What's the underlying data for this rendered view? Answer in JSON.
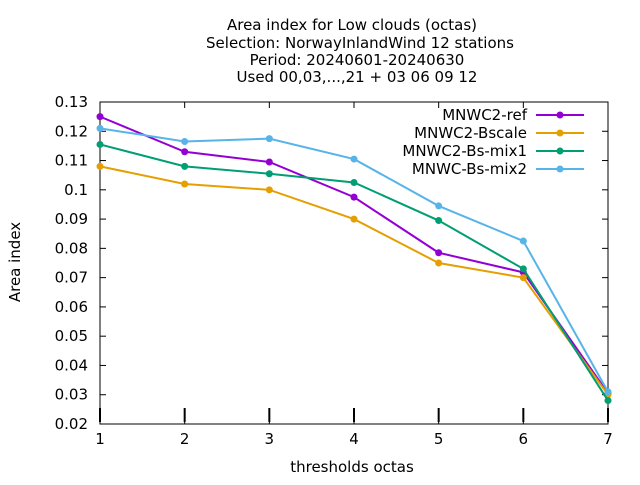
{
  "chart_data": {
    "type": "line",
    "title_lines": [
      "Area index  for Low clouds (octas)",
      "Selection: NorwayInlandWind      12 stations",
      "Period: 20240601-20240630",
      "Used 00,03,...,21 + 03 06 09 12"
    ],
    "xlabel": "thresholds octas",
    "ylabel": "Area index",
    "x": [
      1,
      2,
      3,
      4,
      5,
      6,
      7
    ],
    "xlim": [
      1,
      7
    ],
    "ylim": [
      0.02,
      0.13
    ],
    "x_ticks": [
      "1",
      "2",
      "3",
      "4",
      "5",
      "6",
      "7"
    ],
    "y_ticks": [
      "0.02",
      "0.03",
      "0.04",
      "0.05",
      "0.06",
      "0.07",
      "0.08",
      "0.09",
      "0.1",
      "0.11",
      "0.12",
      "0.13"
    ],
    "grid": false,
    "legend_position": "top-right",
    "series": [
      {
        "name": "MNWC2-ref",
        "color": "#9400d3",
        "values": [
          0.125,
          0.113,
          0.1095,
          0.0975,
          0.0785,
          0.0718,
          0.0305
        ]
      },
      {
        "name": "MNWC2-Bscale",
        "color": "#e69f00",
        "values": [
          0.108,
          0.102,
          0.1,
          0.09,
          0.075,
          0.07,
          0.03
        ]
      },
      {
        "name": "MNWC2-Bs-mix1",
        "color": "#009e73",
        "values": [
          0.1155,
          0.108,
          0.1055,
          0.1025,
          0.0895,
          0.073,
          0.028
        ]
      },
      {
        "name": "MNWC-Bs-mix2",
        "color": "#56b4e9",
        "values": [
          0.121,
          0.1165,
          0.1175,
          0.1105,
          0.0945,
          0.0825,
          0.031
        ]
      }
    ]
  }
}
